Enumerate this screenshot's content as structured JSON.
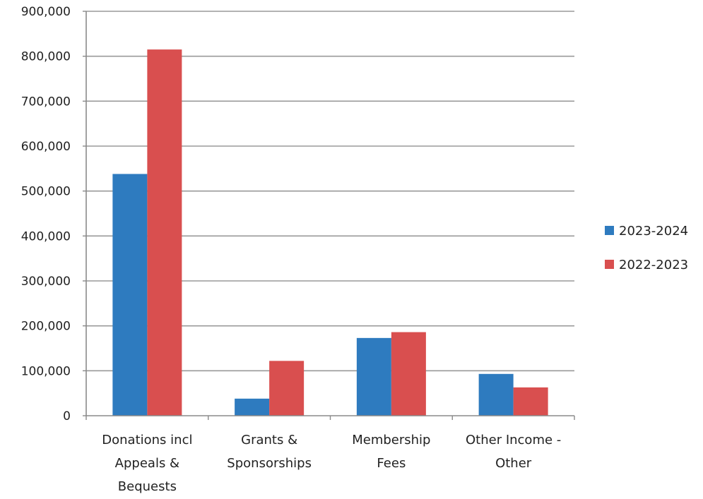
{
  "chart_data": {
    "type": "bar",
    "categories": [
      [
        "Donations incl",
        "Appeals &",
        "Bequests"
      ],
      [
        "Grants &",
        "Sponsorships"
      ],
      [
        "Membership",
        "Fees"
      ],
      [
        "Other Income -",
        "Other"
      ]
    ],
    "series": [
      {
        "name": "2023-2024",
        "color": "#2e7bbf",
        "values": [
          538000,
          38000,
          173000,
          93000
        ]
      },
      {
        "name": "2022-2023",
        "color": "#d94f4f",
        "values": [
          815000,
          122000,
          186000,
          63000
        ]
      }
    ],
    "ylim": [
      0,
      900000
    ],
    "ytick_labels": [
      "0",
      "100,000",
      "200,000",
      "300,000",
      "400,000",
      "500,000",
      "600,000",
      "700,000",
      "800,000",
      "900,000"
    ],
    "grid": true,
    "legend_position": "right"
  }
}
